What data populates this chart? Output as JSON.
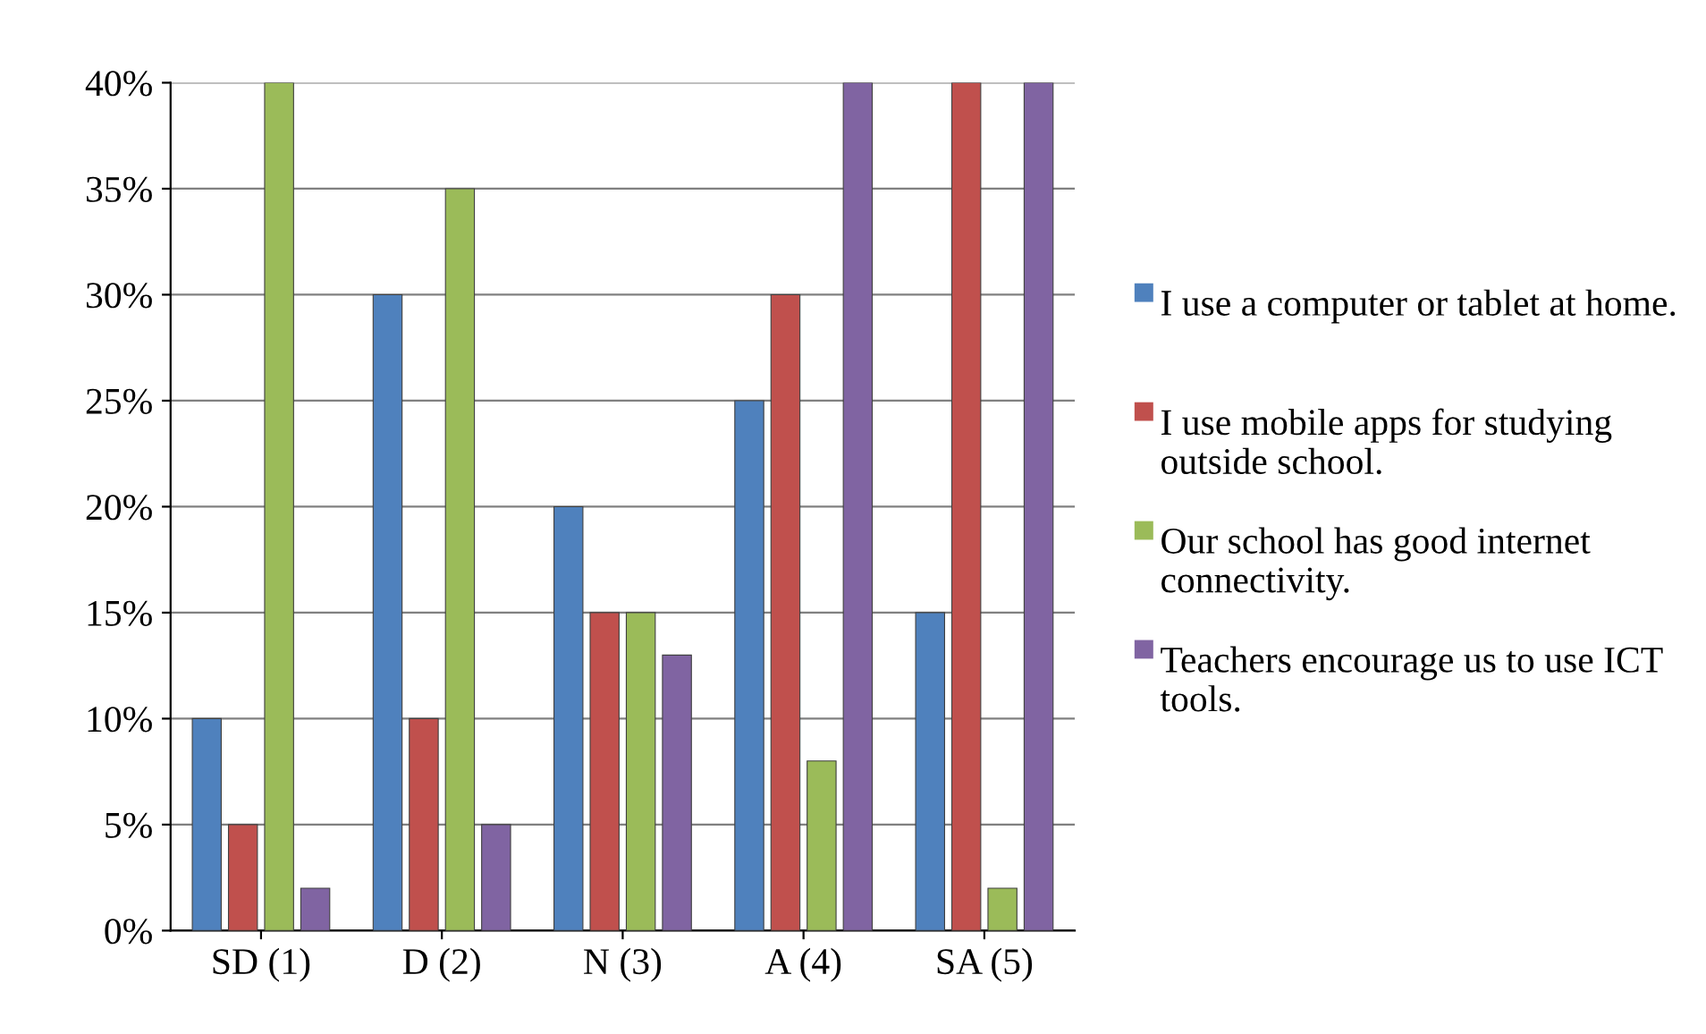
{
  "chart_data": {
    "type": "bar",
    "categories": [
      "SD (1)",
      "D (2)",
      "N (3)",
      "A (4)",
      "SA (5)"
    ],
    "series": [
      {
        "name": "I use a computer or tablet at home.",
        "color": "#4f81bd",
        "values": [
          10,
          30,
          20,
          25,
          15
        ]
      },
      {
        "name": "I use mobile apps for studying outside school.",
        "color": "#c0504d",
        "values": [
          5,
          10,
          15,
          30,
          40
        ]
      },
      {
        "name": "Our school has good internet connectivity.",
        "color": "#9bbb59",
        "values": [
          40,
          35,
          15,
          8,
          2
        ]
      },
      {
        "name": "Teachers encourage us to use ICT tools.",
        "color": "#8064a2",
        "values": [
          2,
          5,
          13,
          40,
          40
        ]
      }
    ],
    "ylim": [
      0,
      40
    ],
    "yticks": [
      {
        "value": 0,
        "label": "0%"
      },
      {
        "value": 5,
        "label": "5%"
      },
      {
        "value": 10,
        "label": "10%"
      },
      {
        "value": 15,
        "label": "15%"
      },
      {
        "value": 20,
        "label": "20%"
      },
      {
        "value": 25,
        "label": "25%"
      },
      {
        "value": 30,
        "label": "30%"
      },
      {
        "value": 35,
        "label": "35%"
      },
      {
        "value": 40,
        "label": "40%"
      }
    ],
    "grid": "y",
    "legend": "right"
  }
}
